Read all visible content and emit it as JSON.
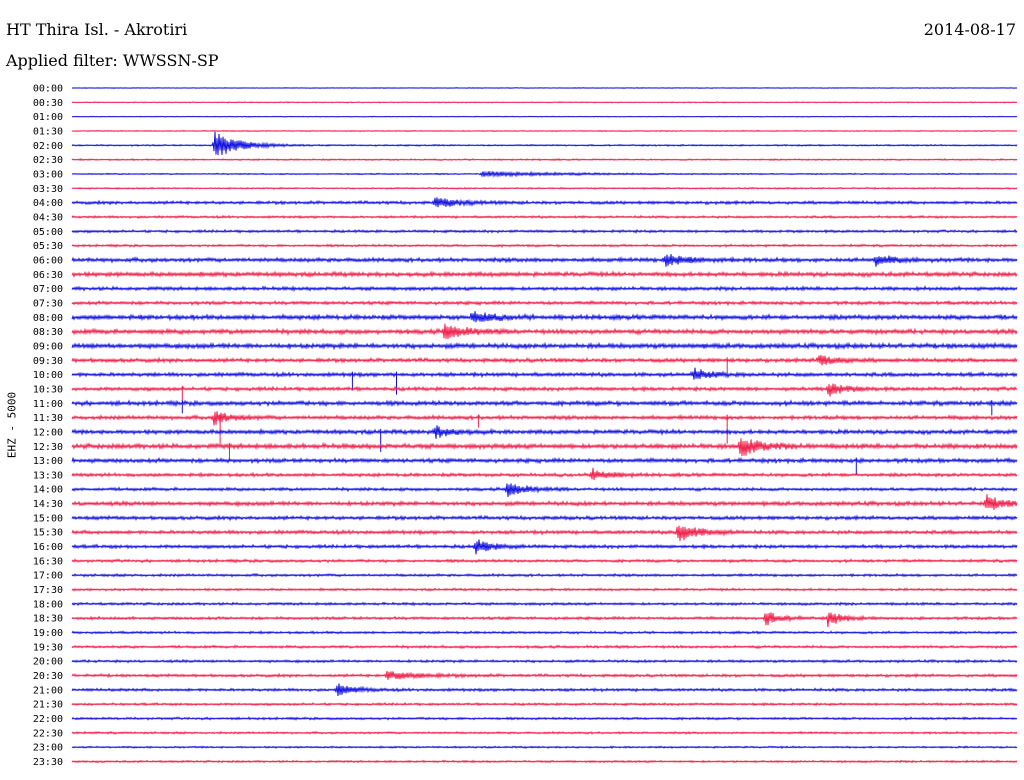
{
  "header": {
    "station": "HT Thira Isl. - Akrotiri",
    "date": "2014-08-17",
    "filter": "Applied filter: WWSSN-SP"
  },
  "channel_label": "EHZ - 5000",
  "colors": {
    "even_trace": "#1010e0",
    "odd_trace": "#f0204a",
    "text": "#000000"
  },
  "chart_data": {
    "type": "line",
    "subtype": "helicorder",
    "title": "HT Thira Isl. - Akrotiri",
    "date": "2014-08-17",
    "filter": "WWSSN-SP",
    "ylabel": "EHZ - 5000",
    "trace_labels": [
      "00:00",
      "00:30",
      "01:00",
      "01:30",
      "02:00",
      "02:30",
      "03:00",
      "03:30",
      "04:00",
      "04:30",
      "05:00",
      "05:30",
      "06:00",
      "06:30",
      "07:00",
      "07:30",
      "08:00",
      "08:30",
      "09:00",
      "09:30",
      "10:00",
      "10:30",
      "11:00",
      "11:30",
      "12:00",
      "12:30",
      "13:00",
      "13:30",
      "14:00",
      "14:30",
      "15:00",
      "15:30",
      "16:00",
      "16:30",
      "17:00",
      "17:30",
      "18:00",
      "18:30",
      "19:00",
      "19:30",
      "20:00",
      "20:30",
      "21:00",
      "21:30",
      "22:00",
      "22:30",
      "23:00",
      "23:30"
    ],
    "trace_minutes": 30,
    "noise_level": [
      0.3,
      0.4,
      0.3,
      0.4,
      0.6,
      0.6,
      0.5,
      0.6,
      1.2,
      0.9,
      1.0,
      0.9,
      1.6,
      1.7,
      1.4,
      1.3,
      1.8,
      1.8,
      1.9,
      1.5,
      1.5,
      1.4,
      1.7,
      1.5,
      1.6,
      1.9,
      1.6,
      1.3,
      1.2,
      1.6,
      1.4,
      1.4,
      1.3,
      1.1,
      1.0,
      0.9,
      1.0,
      1.1,
      0.9,
      1.0,
      1.0,
      1.1,
      1.1,
      0.9,
      0.9,
      0.8,
      0.7,
      0.8
    ],
    "events": [
      {
        "trace": "02:00",
        "minute": 4.5,
        "amplitude": 14,
        "duration_min": 1.5
      },
      {
        "trace": "03:00",
        "minute": 13,
        "amplitude": 2.5,
        "duration_min": 4.5
      },
      {
        "trace": "04:00",
        "minute": 11.5,
        "amplitude": 5,
        "duration_min": 1.5
      },
      {
        "trace": "06:00",
        "minute": 18.8,
        "amplitude": 6,
        "duration_min": 1.5
      },
      {
        "trace": "06:00",
        "minute": 25.5,
        "amplitude": 6,
        "duration_min": 1.0
      },
      {
        "trace": "08:00",
        "minute": 12.7,
        "amplitude": 6,
        "duration_min": 1.2
      },
      {
        "trace": "08:30",
        "minute": 11.8,
        "amplitude": 8,
        "duration_min": 1.2
      },
      {
        "trace": "09:30",
        "minute": 23.7,
        "amplitude": 6,
        "duration_min": 1.0
      },
      {
        "trace": "10:00",
        "minute": 19.7,
        "amplitude": 6,
        "duration_min": 1.0
      },
      {
        "trace": "10:30",
        "minute": 24,
        "amplitude": 7,
        "duration_min": 1.0
      },
      {
        "trace": "11:30",
        "minute": 4.5,
        "amplitude": 7,
        "duration_min": 1.0
      },
      {
        "trace": "12:00",
        "minute": 11.5,
        "amplitude": 6,
        "duration_min": 1.0
      },
      {
        "trace": "12:30",
        "minute": 21.2,
        "amplitude": 10,
        "duration_min": 1.2
      },
      {
        "trace": "13:30",
        "minute": 16.5,
        "amplitude": 6,
        "duration_min": 1.0
      },
      {
        "trace": "14:00",
        "minute": 13.8,
        "amplitude": 8,
        "duration_min": 1.0
      },
      {
        "trace": "14:30",
        "minute": 29,
        "amplitude": 8,
        "duration_min": 1.0
      },
      {
        "trace": "15:30",
        "minute": 19.2,
        "amplitude": 10,
        "duration_min": 1.2
      },
      {
        "trace": "16:00",
        "minute": 12.8,
        "amplitude": 7,
        "duration_min": 1.0
      },
      {
        "trace": "18:30",
        "minute": 22,
        "amplitude": 8,
        "duration_min": 0.8
      },
      {
        "trace": "18:30",
        "minute": 24,
        "amplitude": 8,
        "duration_min": 0.8
      },
      {
        "trace": "20:30",
        "minute": 10,
        "amplitude": 4,
        "duration_min": 2.0
      },
      {
        "trace": "21:00",
        "minute": 8.4,
        "amplitude": 6,
        "duration_min": 1.0
      }
    ],
    "spikes": [
      {
        "trace": "10:00",
        "minute": 8.9,
        "amplitude": 16
      },
      {
        "trace": "10:00",
        "minute": 10.3,
        "amplitude": 20
      },
      {
        "trace": "11:30",
        "minute": 4.7,
        "amplitude": 26
      },
      {
        "trace": "12:30",
        "minute": 5.0,
        "amplitude": 14
      },
      {
        "trace": "12:00",
        "minute": 9.8,
        "amplitude": 20
      },
      {
        "trace": "10:30",
        "minute": 3.5,
        "amplitude": 12
      },
      {
        "trace": "11:00",
        "minute": 3.5,
        "amplitude": 10
      },
      {
        "trace": "11:30",
        "minute": 12.9,
        "amplitude": 10
      },
      {
        "trace": "11:00",
        "minute": 29.2,
        "amplitude": 12
      },
      {
        "trace": "09:30",
        "minute": 20.8,
        "amplitude": 14
      },
      {
        "trace": "11:30",
        "minute": 20.8,
        "amplitude": 26
      },
      {
        "trace": "13:00",
        "minute": 24.9,
        "amplitude": 14
      }
    ],
    "grid": false,
    "legend": "none"
  }
}
